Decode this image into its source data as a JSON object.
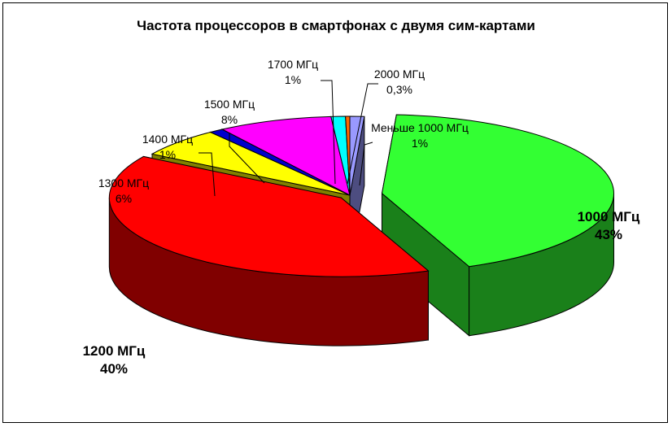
{
  "chart_data": {
    "type": "pie",
    "title": "Частота процессоров в смартфонах с двумя сим-картами",
    "slices": [
      {
        "label": "Меньше 1000 МГц",
        "percent_label": "1%",
        "value": 1.0,
        "color": "#9999ff"
      },
      {
        "label": "1000 МГц",
        "percent_label": "43%",
        "value": 43.0,
        "color": "#33ff33"
      },
      {
        "label": "1200 МГц",
        "percent_label": "40%",
        "value": 40.0,
        "color": "#ff0000"
      },
      {
        "label": "1300 МГц",
        "percent_label": "6%",
        "value": 6.0,
        "color": "#ffff00"
      },
      {
        "label": "1400 МГц",
        "percent_label": "1%",
        "value": 1.0,
        "color": "#0000cc"
      },
      {
        "label": "1500 МГц",
        "percent_label": "8%",
        "value": 8.0,
        "color": "#ff00ff"
      },
      {
        "label": "1700 МГц",
        "percent_label": "1%",
        "value": 1.0,
        "color": "#00ffff"
      },
      {
        "label": "2000 МГц",
        "percent_label": "0,3%",
        "value": 0.3,
        "color": "#ff6600"
      }
    ]
  }
}
